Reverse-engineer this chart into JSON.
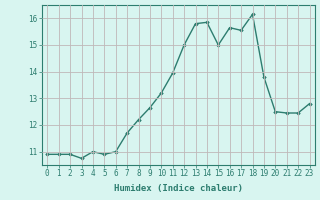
{
  "x": [
    0,
    1,
    2,
    3,
    4,
    5,
    6,
    7,
    8,
    9,
    10,
    11,
    12,
    13,
    14,
    15,
    16,
    17,
    18,
    19,
    20,
    21,
    22,
    23
  ],
  "y": [
    10.9,
    10.9,
    10.9,
    10.75,
    11.0,
    10.9,
    11.0,
    11.7,
    12.2,
    12.65,
    13.2,
    13.95,
    15.0,
    15.8,
    15.85,
    15.0,
    15.65,
    15.55,
    16.15,
    13.8,
    12.5,
    12.45,
    12.45,
    12.8
  ],
  "line_color": "#2d7d6f",
  "marker": "D",
  "marker_size": 1.8,
  "bg_color": "#d8f5f0",
  "grid_color": "#c0b8b8",
  "xlabel": "Humidex (Indice chaleur)",
  "ylim": [
    10.5,
    16.5
  ],
  "xlim": [
    -0.5,
    23.5
  ],
  "yticks": [
    11,
    12,
    13,
    14,
    15,
    16
  ],
  "xticks": [
    0,
    1,
    2,
    3,
    4,
    5,
    6,
    7,
    8,
    9,
    10,
    11,
    12,
    13,
    14,
    15,
    16,
    17,
    18,
    19,
    20,
    21,
    22,
    23
  ],
  "tick_color": "#2d7d6f",
  "label_fontsize": 6.5,
  "tick_fontsize": 5.5,
  "line_width": 1.0
}
